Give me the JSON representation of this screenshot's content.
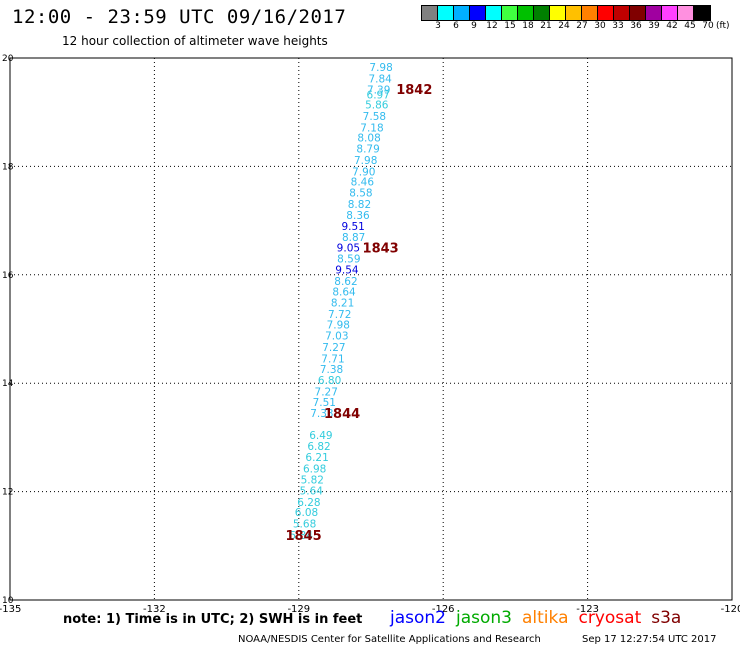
{
  "header": {
    "title": "12:00 - 23:59 UTC 09/16/2017",
    "subtitle": "12 hour collection of altimeter wave heights"
  },
  "legend": {
    "unit": "(ft)",
    "colors": [
      "#808080",
      "#00ffff",
      "#00b0ff",
      "#0000ff",
      "#00ffff",
      "#40ff40",
      "#00c000",
      "#008000",
      "#ffff00",
      "#ffc000",
      "#ff8000",
      "#ff0000",
      "#c00000",
      "#800000",
      "#a000a0",
      "#ff40ff",
      "#ff90e0",
      "#000000"
    ],
    "labels": [
      "3",
      "6",
      "9",
      "12",
      "15",
      "18",
      "21",
      "24",
      "27",
      "30",
      "33",
      "36",
      "39",
      "42",
      "45",
      "70"
    ]
  },
  "chart_data": {
    "type": "scatter",
    "xlim": [
      -135,
      -120
    ],
    "ylim": [
      10,
      20
    ],
    "x_ticks": [
      "-135",
      "-132",
      "-129",
      "-126",
      "-123",
      "-120"
    ],
    "y_ticks": [
      "20",
      "18",
      "16",
      "14",
      "12",
      "10"
    ],
    "grid": true,
    "points": [
      {
        "lon": -127.29,
        "lat": 19.83,
        "value": "7.98",
        "color": "#33bbee"
      },
      {
        "lon": -127.31,
        "lat": 19.62,
        "value": "7.84",
        "color": "#33bbee"
      },
      {
        "lon": -127.34,
        "lat": 19.42,
        "value": "7.39",
        "color": "#33bbee"
      },
      {
        "lon": -127.35,
        "lat": 19.33,
        "value": "6.97",
        "color": "#33ccdd"
      },
      {
        "lon": -127.38,
        "lat": 19.14,
        "value": "5.86",
        "color": "#33ccdd"
      },
      {
        "lon": -127.43,
        "lat": 18.93,
        "value": "7.58",
        "color": "#33bbee"
      },
      {
        "lon": -127.48,
        "lat": 18.72,
        "value": "7.18",
        "color": "#33bbee"
      },
      {
        "lon": -127.54,
        "lat": 18.53,
        "value": "8.08",
        "color": "#33bbee"
      },
      {
        "lon": -127.56,
        "lat": 18.33,
        "value": "8.79",
        "color": "#33bbee"
      },
      {
        "lon": -127.61,
        "lat": 18.12,
        "value": "7.98",
        "color": "#33bbee"
      },
      {
        "lon": -127.65,
        "lat": 17.91,
        "value": "7.90",
        "color": "#33bbee"
      },
      {
        "lon": -127.68,
        "lat": 17.72,
        "value": "8.46",
        "color": "#33bbee"
      },
      {
        "lon": -127.71,
        "lat": 17.52,
        "value": "8.58",
        "color": "#33bbee"
      },
      {
        "lon": -127.74,
        "lat": 17.31,
        "value": "8.82",
        "color": "#33bbee"
      },
      {
        "lon": -127.77,
        "lat": 17.1,
        "value": "8.36",
        "color": "#33bbee"
      },
      {
        "lon": -127.87,
        "lat": 16.9,
        "value": "9.51",
        "color": "#0000dd"
      },
      {
        "lon": -127.86,
        "lat": 16.7,
        "value": "8.87",
        "color": "#33bbee"
      },
      {
        "lon": -127.97,
        "lat": 16.5,
        "value": "9.05",
        "color": "#0000dd"
      },
      {
        "lon": -127.96,
        "lat": 16.3,
        "value": "8.59",
        "color": "#33bbee"
      },
      {
        "lon": -128.0,
        "lat": 16.1,
        "value": "9.54",
        "color": "#0000dd"
      },
      {
        "lon": -128.02,
        "lat": 15.89,
        "value": "8.62",
        "color": "#33bbee"
      },
      {
        "lon": -128.06,
        "lat": 15.69,
        "value": "8.64",
        "color": "#33bbee"
      },
      {
        "lon": -128.09,
        "lat": 15.49,
        "value": "8.21",
        "color": "#33bbee"
      },
      {
        "lon": -128.15,
        "lat": 15.28,
        "value": "7.72",
        "color": "#33bbee"
      },
      {
        "lon": -128.18,
        "lat": 15.08,
        "value": "7.98",
        "color": "#33bbee"
      },
      {
        "lon": -128.21,
        "lat": 14.88,
        "value": "7.03",
        "color": "#33bbee"
      },
      {
        "lon": -128.27,
        "lat": 14.67,
        "value": "7.27",
        "color": "#33bbee"
      },
      {
        "lon": -128.29,
        "lat": 14.46,
        "value": "7.71",
        "color": "#33bbee"
      },
      {
        "lon": -128.32,
        "lat": 14.26,
        "value": "7.38",
        "color": "#33bbee"
      },
      {
        "lon": -128.36,
        "lat": 14.06,
        "value": "6.80",
        "color": "#33ccdd"
      },
      {
        "lon": -128.43,
        "lat": 13.85,
        "value": "7.27",
        "color": "#33bbee"
      },
      {
        "lon": -128.47,
        "lat": 13.65,
        "value": "7.51",
        "color": "#33bbee"
      },
      {
        "lon": -128.52,
        "lat": 13.45,
        "value": "7.33",
        "color": "#33bbee"
      },
      {
        "lon": -128.54,
        "lat": 13.04,
        "value": "6.49",
        "color": "#33ccdd"
      },
      {
        "lon": -128.58,
        "lat": 12.84,
        "value": "6.82",
        "color": "#33ccdd"
      },
      {
        "lon": -128.62,
        "lat": 12.64,
        "value": "6.21",
        "color": "#33ccdd"
      },
      {
        "lon": -128.67,
        "lat": 12.43,
        "value": "6.98",
        "color": "#33ccdd"
      },
      {
        "lon": -128.72,
        "lat": 12.22,
        "value": "5.82",
        "color": "#33ccdd"
      },
      {
        "lon": -128.74,
        "lat": 12.02,
        "value": "5.64",
        "color": "#33ccdd"
      },
      {
        "lon": -128.79,
        "lat": 11.81,
        "value": "6.28",
        "color": "#33ccdd"
      },
      {
        "lon": -128.84,
        "lat": 11.62,
        "value": "6.08",
        "color": "#33ccdd"
      },
      {
        "lon": -128.88,
        "lat": 11.41,
        "value": "5.68",
        "color": "#33ccdd"
      },
      {
        "lon": -128.95,
        "lat": 11.2,
        "value": "5.84",
        "color": "#33ccdd"
      }
    ],
    "time_markers": [
      {
        "lon": -126.6,
        "lat": 19.43,
        "label": "1842"
      },
      {
        "lon": -127.3,
        "lat": 16.5,
        "label": "1843"
      },
      {
        "lon": -128.1,
        "lat": 13.45,
        "label": "1844"
      },
      {
        "lon": -128.9,
        "lat": 11.2,
        "label": "1845"
      }
    ]
  },
  "footer": {
    "note": "note: 1) Time is in UTC; 2) SWH is in feet",
    "satellites": [
      {
        "name": "jason2",
        "color": "#0000ff"
      },
      {
        "name": "jason3",
        "color": "#00aa00"
      },
      {
        "name": "altika",
        "color": "#ff8000"
      },
      {
        "name": "cryosat",
        "color": "#ff0000"
      },
      {
        "name": "s3a",
        "color": "#800000"
      }
    ],
    "credit": "NOAA/NESDIS Center for Satellite Applications and Research",
    "timestamp": "Sep 17 12:27:54 UTC 2017"
  }
}
